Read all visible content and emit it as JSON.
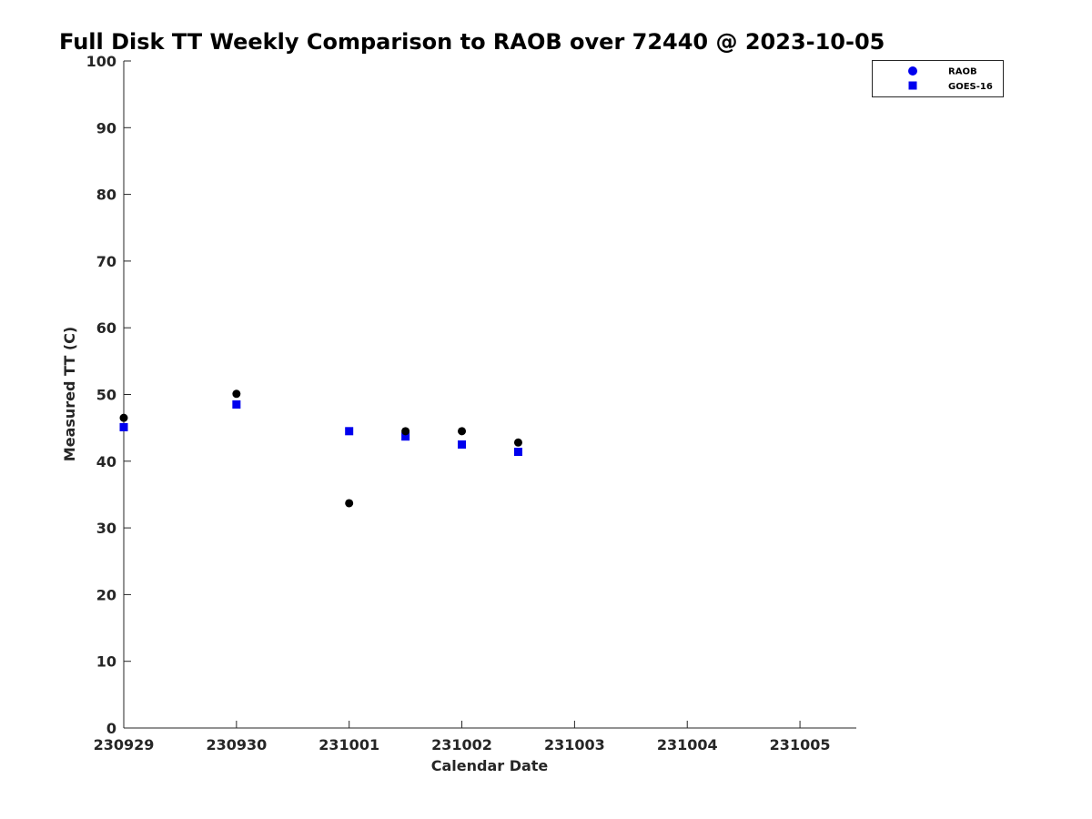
{
  "chart_data": {
    "type": "scatter",
    "title": "Full Disk TT Weekly Comparison to RAOB over 72440 @ 2023-10-05",
    "xlabel": "Calendar Date",
    "ylabel": "Measured TT (C)",
    "x_ticks": [
      0,
      1,
      2,
      3,
      4,
      5,
      6
    ],
    "x_tick_labels": [
      "230929",
      "230930",
      "231001",
      "231002",
      "231003",
      "231004",
      "231005"
    ],
    "xlim": [
      0,
      6.5
    ],
    "ylim": [
      0,
      100
    ],
    "y_ticks": [
      0,
      10,
      20,
      30,
      40,
      50,
      60,
      70,
      80,
      90,
      100
    ],
    "y_tick_labels": [
      "0",
      "10",
      "20",
      "30",
      "40",
      "50",
      "60",
      "70",
      "80",
      "90",
      "100"
    ],
    "grid": false,
    "legend_position": "top-right",
    "series": [
      {
        "name": "RAOB",
        "marker": "circle",
        "color": "#000000",
        "legend_color": "#0000ee",
        "x": [
          0,
          1,
          2,
          2.5,
          3,
          3.5
        ],
        "y": [
          46.5,
          50.1,
          33.7,
          44.5,
          44.5,
          42.8
        ]
      },
      {
        "name": "GOES-16",
        "marker": "square",
        "color": "#0000ee",
        "legend_color": "#0000ee",
        "x": [
          0,
          1,
          2,
          2.5,
          3,
          3.5
        ],
        "y": [
          45.1,
          48.5,
          44.5,
          43.7,
          42.5,
          41.4
        ]
      }
    ]
  }
}
